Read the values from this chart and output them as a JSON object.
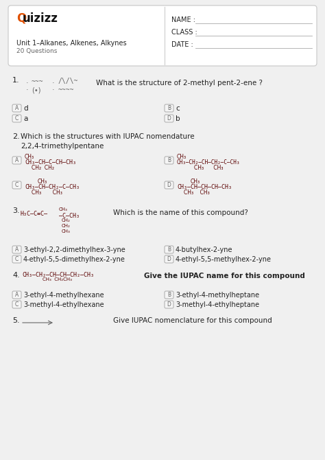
{
  "bg_color": "#f0f0f0",
  "card_bg": "#ffffff",
  "card_border": "#cccccc",
  "highlight_color": "#e05000",
  "text_color": "#222222",
  "gray_color": "#666666",
  "dark_red": "#5a0000",
  "unit_text": "Unit 1–Alkanes, Alkenes, Alkynes",
  "questions_text": "20 Questions",
  "q1_text": "What is the structure of 2-methyl pent-2-ene ?",
  "q1_A": "d",
  "q1_B": "c",
  "q1_C": "a",
  "q1_D": "b",
  "q2_text": "Which is the structures with IUPAC nomendature",
  "q2_sub": "2,2,4-trimethylpentane",
  "q3_text": "Which is the name of this compound?",
  "q3_A": "3-ethyl-2,2-dimethylhex-3-yne",
  "q3_B": "4-butylhex-2-yne",
  "q3_C": "4-ethyl-5,5-dimethylhex-2-yne",
  "q3_D": "4-ethyl-5,5-methylhex-2-yne",
  "q4_text": "Give the IUPAC name for this compound",
  "q4_A": "3-ethyl-4-methylhexane",
  "q4_B": "3-ethyl-4-methylheptane",
  "q4_C": "3-methyl-4-ethylhexane",
  "q4_D": "3-methyl-4-ethylheptane",
  "q5_text": "Give IUPAC nomenclature for this compound"
}
